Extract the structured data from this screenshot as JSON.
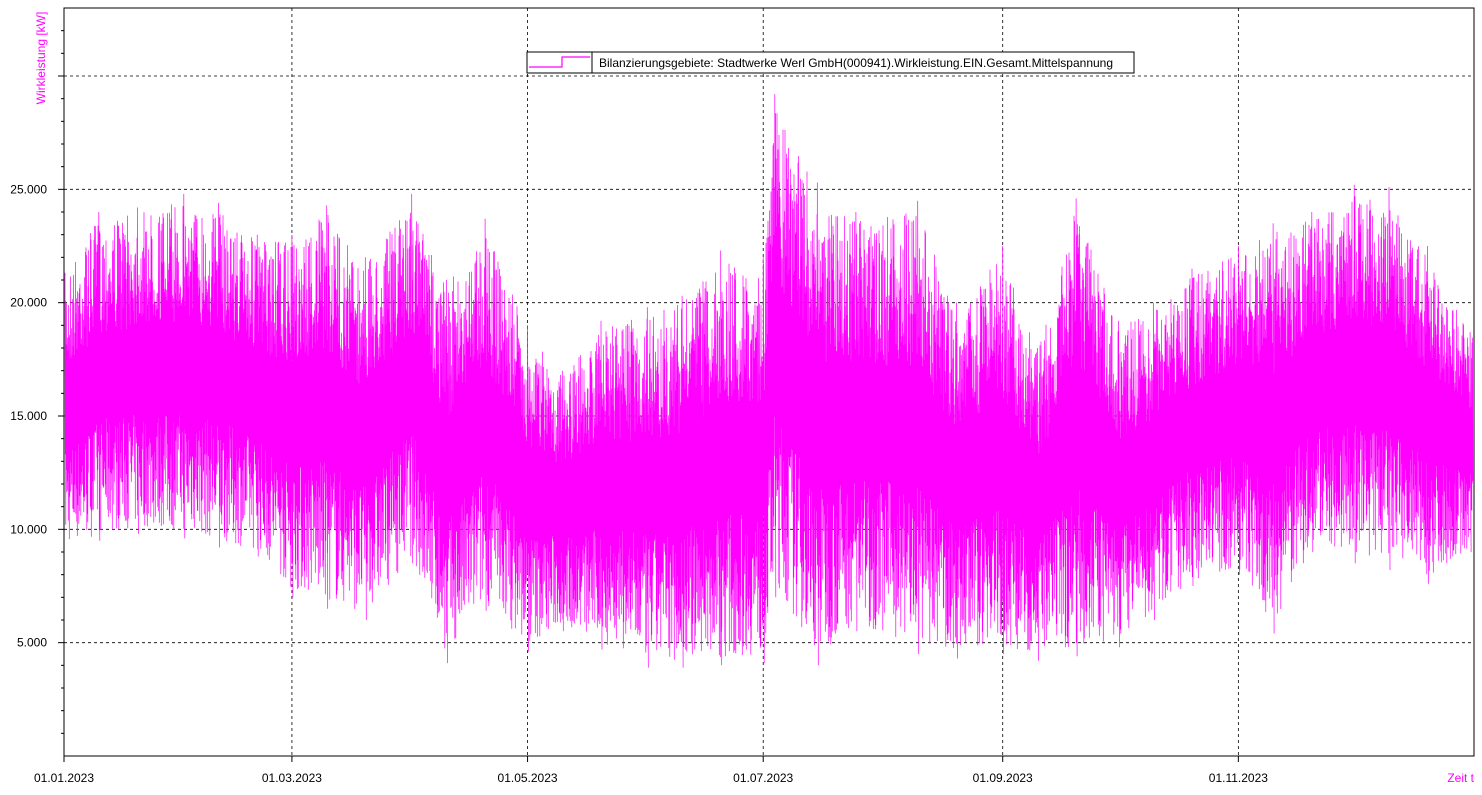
{
  "colors": {
    "series": "#ff00ff",
    "grid": "#000000",
    "axis": "#000000",
    "background": "#ffffff"
  },
  "chart_data": {
    "type": "line",
    "title": "",
    "ylabel": "Wirkleistung [kW]",
    "xlabel": "Zeit t",
    "ylim": [
      0,
      33000
    ],
    "xlim": [
      "2023-01-01",
      "2024-01-01"
    ],
    "grid": true,
    "legend_position": "top-center",
    "y_ticks": [
      {
        "value": 5000,
        "label": "5.000"
      },
      {
        "value": 10000,
        "label": "10.000"
      },
      {
        "value": 15000,
        "label": "15.000"
      },
      {
        "value": 20000,
        "label": "20.000"
      },
      {
        "value": 25000,
        "label": "25.000"
      },
      {
        "value": 30000,
        "label": ""
      }
    ],
    "x_ticks": [
      {
        "value": "2023-01-01",
        "label": "01.01.2023"
      },
      {
        "value": "2023-03-01",
        "label": "01.03.2023"
      },
      {
        "value": "2023-05-01",
        "label": "01.05.2023"
      },
      {
        "value": "2023-07-01",
        "label": "01.07.2023"
      },
      {
        "value": "2023-09-01",
        "label": "01.09.2023"
      },
      {
        "value": "2023-11-01",
        "label": "01.11.2023"
      }
    ],
    "series": [
      {
        "name": "Bilanzierungsgebiete: Stadtwerke Werl GmbH(000941).Wirkleistung.EIN.Gesamt.Mittelspannung",
        "color": "#ff00ff",
        "points": [
          {
            "x": "2023-01-01",
            "y_min": 9000,
            "y_max": 21500
          },
          {
            "x": "2023-01-10",
            "y_min": 9500,
            "y_max": 24000
          },
          {
            "x": "2023-01-20",
            "y_min": 9800,
            "y_max": 24200
          },
          {
            "x": "2023-02-01",
            "y_min": 9600,
            "y_max": 24800
          },
          {
            "x": "2023-02-10",
            "y_min": 9200,
            "y_max": 24400
          },
          {
            "x": "2023-02-20",
            "y_min": 8800,
            "y_max": 23000
          },
          {
            "x": "2023-03-01",
            "y_min": 7000,
            "y_max": 23000
          },
          {
            "x": "2023-03-10",
            "y_min": 6500,
            "y_max": 24300
          },
          {
            "x": "2023-03-20",
            "y_min": 6000,
            "y_max": 22000
          },
          {
            "x": "2023-04-01",
            "y_min": 8500,
            "y_max": 24800
          },
          {
            "x": "2023-04-10",
            "y_min": 4100,
            "y_max": 21000
          },
          {
            "x": "2023-04-20",
            "y_min": 6400,
            "y_max": 23700
          },
          {
            "x": "2023-05-01",
            "y_min": 4600,
            "y_max": 19000
          },
          {
            "x": "2023-05-10",
            "y_min": 5500,
            "y_max": 17000
          },
          {
            "x": "2023-05-20",
            "y_min": 4700,
            "y_max": 19200
          },
          {
            "x": "2023-06-01",
            "y_min": 3900,
            "y_max": 19800
          },
          {
            "x": "2023-06-10",
            "y_min": 3900,
            "y_max": 20300
          },
          {
            "x": "2023-06-20",
            "y_min": 4000,
            "y_max": 22300
          },
          {
            "x": "2023-07-01",
            "y_min": 4100,
            "y_max": 22000
          },
          {
            "x": "2023-07-04",
            "y_min": 7000,
            "y_max": 29200
          },
          {
            "x": "2023-07-15",
            "y_min": 4000,
            "y_max": 25300
          },
          {
            "x": "2023-07-25",
            "y_min": 5500,
            "y_max": 24000
          },
          {
            "x": "2023-08-10",
            "y_min": 4500,
            "y_max": 24500
          },
          {
            "x": "2023-08-20",
            "y_min": 4300,
            "y_max": 20000
          },
          {
            "x": "2023-09-01",
            "y_min": 4500,
            "y_max": 22500
          },
          {
            "x": "2023-09-10",
            "y_min": 4200,
            "y_max": 18000
          },
          {
            "x": "2023-09-20",
            "y_min": 4400,
            "y_max": 24600
          },
          {
            "x": "2023-10-01",
            "y_min": 4800,
            "y_max": 19200
          },
          {
            "x": "2023-10-10",
            "y_min": 6000,
            "y_max": 20000
          },
          {
            "x": "2023-10-20",
            "y_min": 7500,
            "y_max": 21500
          },
          {
            "x": "2023-11-01",
            "y_min": 8000,
            "y_max": 22500
          },
          {
            "x": "2023-11-10",
            "y_min": 5400,
            "y_max": 23500
          },
          {
            "x": "2023-11-20",
            "y_min": 9000,
            "y_max": 24000
          },
          {
            "x": "2023-12-01",
            "y_min": 8500,
            "y_max": 25200
          },
          {
            "x": "2023-12-10",
            "y_min": 8200,
            "y_max": 25100
          },
          {
            "x": "2023-12-20",
            "y_min": 7600,
            "y_max": 22500
          },
          {
            "x": "2023-12-31",
            "y_min": 9000,
            "y_max": 18700
          }
        ]
      }
    ]
  }
}
